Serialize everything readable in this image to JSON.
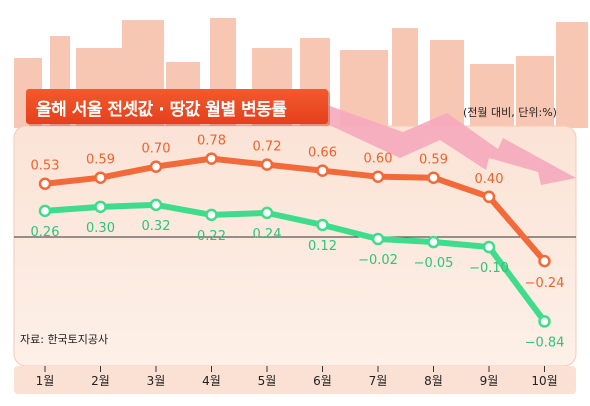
{
  "title": "올해 서울 전셋값 · 땅값  월별 변동률",
  "unit_note": "(전월 대비, 단위:%)",
  "source_note": "자료: 한국토지공사",
  "colors": {
    "series_orange": "#f26a3a",
    "series_green": "#3fdc8c",
    "banner": "#ea4a22",
    "plot_bg": "#fcebe2",
    "buildings": "#f8c7b3",
    "arrow": "#f5a9bd"
  },
  "chart_data": {
    "type": "line",
    "categories": [
      "1월",
      "2월",
      "3월",
      "4월",
      "5월",
      "6월",
      "7월",
      "8월",
      "9월",
      "10월"
    ],
    "series": [
      {
        "values": [
          0.53,
          0.59,
          0.7,
          0.78,
          0.72,
          0.66,
          0.6,
          0.59,
          0.4,
          -0.24
        ],
        "labels": [
          "0.53",
          "0.59",
          "0.70",
          "0.78",
          "0.72",
          "0.66",
          "0.60",
          "0.59",
          "0.40",
          "−0.24"
        ]
      },
      {
        "values": [
          0.26,
          0.3,
          0.32,
          0.22,
          0.24,
          0.12,
          -0.02,
          -0.05,
          -0.1,
          -0.84
        ],
        "labels": [
          "0.26",
          "0.30",
          "0.32",
          "0.22",
          "0.24",
          "0.12",
          "−0.02",
          "−0.05",
          "−0.10",
          "−0.84"
        ]
      }
    ],
    "baseline": 0,
    "grid": false,
    "legend": "none"
  }
}
